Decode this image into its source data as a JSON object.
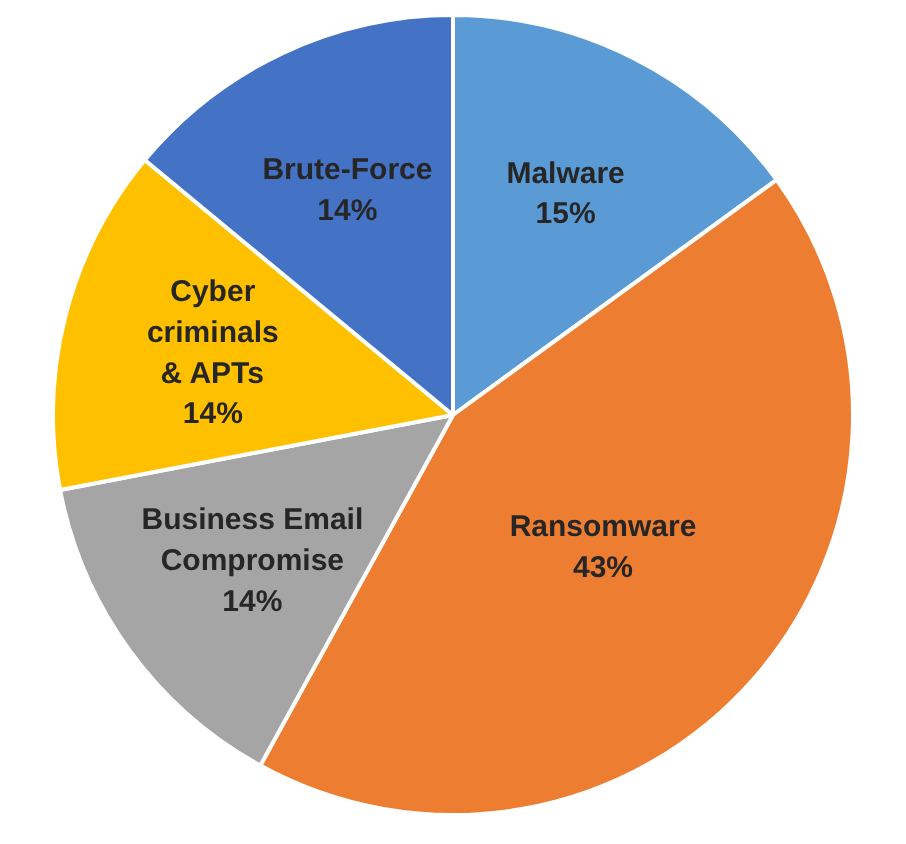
{
  "chart_data": {
    "type": "pie",
    "categories": [
      "Malware",
      "Ransomware",
      "Business Email\nCompromise",
      "Cyber\ncriminals\n& APTs",
      "Brute-Force"
    ],
    "values": [
      15,
      43,
      14,
      14,
      14
    ],
    "value_labels": [
      "15%",
      "43%",
      "14%",
      "14%",
      "14%"
    ],
    "colors": [
      "#5b9bd5",
      "#ed7d31",
      "#a5a5a5",
      "#ffc000",
      "#4472c4"
    ]
  }
}
